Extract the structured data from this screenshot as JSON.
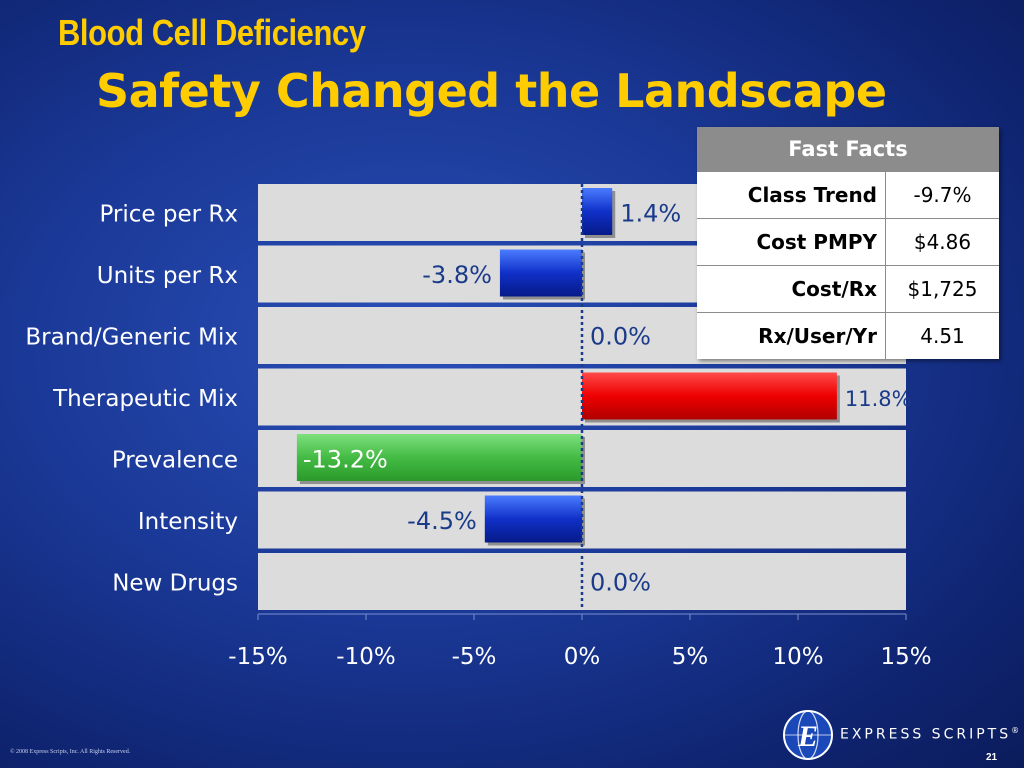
{
  "slide": {
    "title": "Blood Cell Deficiency",
    "subtitle": "Safety Changed the Landscape",
    "footer": "© 2008 Express Scripts, Inc. All Rights Reserved.",
    "page_number": "21",
    "logo_text": "EXPRESS SCRIPTS",
    "logo_mark": "®"
  },
  "fast_facts": {
    "header": "Fast Facts",
    "rows": [
      {
        "label": "Class Trend",
        "value": "-9.7%"
      },
      {
        "label": "Cost PMPY",
        "value": "$4.86"
      },
      {
        "label": "Cost/Rx",
        "value": "$1,725"
      },
      {
        "label": "Rx/User/Yr",
        "value": "4.51"
      }
    ]
  },
  "chart_data": {
    "type": "bar",
    "orientation": "horizontal",
    "categories": [
      "Price per Rx",
      "Units per Rx",
      "Brand/Generic Mix",
      "Therapeutic Mix",
      "Prevalence",
      "Intensity",
      "New Drugs"
    ],
    "values": [
      1.4,
      -3.8,
      0.0,
      11.8,
      -13.2,
      -4.5,
      0.0
    ],
    "data_labels": [
      "1.4%",
      "-3.8%",
      "0.0%",
      "11.8%",
      "-13.2%",
      "-4.5%",
      "0.0%"
    ],
    "xlim": [
      -15,
      15
    ],
    "xticks": [
      -15,
      -10,
      -5,
      0,
      5,
      10,
      15
    ],
    "xtick_labels": [
      "-15%",
      "-10%",
      "-5%",
      "0%",
      "5%",
      "10%",
      "15%"
    ],
    "colors": {
      "positive": "#1030c8",
      "negative": "#1030c8",
      "highlight_increase": "#ee0000",
      "highlight_decrease": "#44bb44",
      "row_background": "#dcdcdc",
      "zero_line": "#1a3a8a"
    },
    "bar_color_keys": [
      "positive",
      "negative",
      "positive",
      "highlight_increase",
      "highlight_decrease",
      "negative",
      "positive"
    ],
    "label_colors": [
      "#1a3a8a",
      "#1a3a8a",
      "#1a3a8a",
      "#1a3a8a",
      "#ffffff",
      "#1a3a8a",
      "#1a3a8a"
    ],
    "xlabel": "",
    "ylabel": ""
  }
}
